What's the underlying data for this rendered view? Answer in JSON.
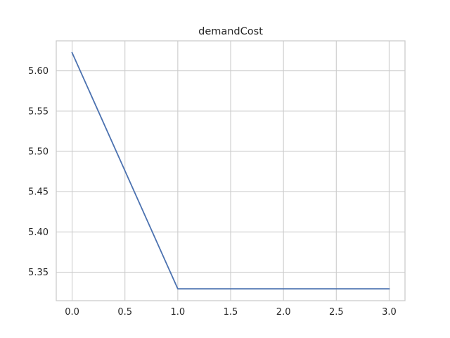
{
  "chart_data": {
    "type": "line",
    "title": "demandCost",
    "xlabel": "",
    "ylabel": "",
    "xlim": [
      -0.15,
      3.15
    ],
    "ylim": [
      5.3147,
      5.6372
    ],
    "x_ticks": [
      0.0,
      0.5,
      1.0,
      1.5,
      2.0,
      2.5,
      3.0
    ],
    "x_tick_labels": [
      "0.0",
      "0.5",
      "1.0",
      "1.5",
      "2.0",
      "2.5",
      "3.0"
    ],
    "y_ticks": [
      5.35,
      5.4,
      5.45,
      5.5,
      5.55,
      5.6
    ],
    "y_tick_labels": [
      "5.35",
      "5.40",
      "5.45",
      "5.50",
      "5.55",
      "5.60"
    ],
    "grid": true,
    "series": [
      {
        "x": [
          0,
          1,
          2,
          3
        ],
        "values": [
          5.6225,
          5.3294,
          5.3294,
          5.3294
        ],
        "color": "#4c72b0"
      }
    ],
    "colors": {
      "grid": "#cccccc",
      "spine": "#cccccc",
      "text": "#262626",
      "background": "#ffffff"
    }
  }
}
